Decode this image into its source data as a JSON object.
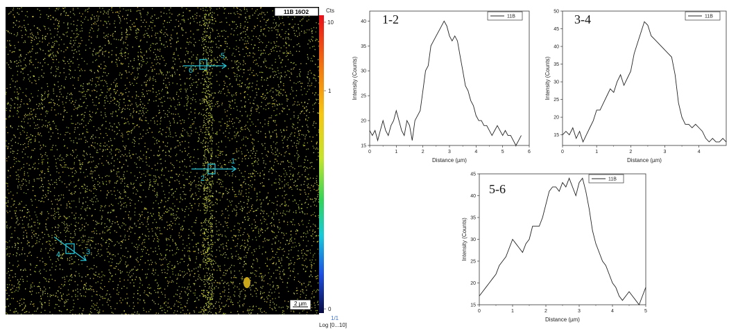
{
  "map": {
    "title": "11B 16O2",
    "scale_bar_label": "2 µm",
    "colorbar_unit": "Cts",
    "colorbar_ticks": [
      "10",
      "1",
      "0"
    ],
    "frame_label": "1/1",
    "scale_label": "Log [0...10]",
    "markers": [
      {
        "id": "m1",
        "text": "1"
      },
      {
        "id": "m2",
        "text": "2"
      },
      {
        "id": "m3",
        "text": "3"
      },
      {
        "id": "m4",
        "text": "4"
      },
      {
        "id": "m5",
        "text": "5"
      },
      {
        "id": "m6",
        "text": "6"
      }
    ],
    "colors": {
      "dot": "#d8e64a",
      "annotation": "#29c6d6"
    }
  },
  "chart_data": [
    {
      "type": "line",
      "title": "1-2",
      "xlabel": "Distance (µm)",
      "ylabel": "Intensity (Counts)",
      "xlim": [
        0,
        6
      ],
      "ylim": [
        15,
        42
      ],
      "xticks": [
        0,
        1,
        2,
        3,
        4,
        5,
        6
      ],
      "yticks": [
        15,
        20,
        25,
        30,
        35,
        40
      ],
      "series": [
        {
          "name": "11B",
          "x": [
            0,
            0.1,
            0.2,
            0.3,
            0.4,
            0.5,
            0.6,
            0.7,
            0.8,
            0.9,
            1.0,
            1.1,
            1.2,
            1.3,
            1.4,
            1.5,
            1.6,
            1.7,
            1.8,
            1.9,
            2.0,
            2.1,
            2.2,
            2.3,
            2.4,
            2.5,
            2.6,
            2.7,
            2.8,
            2.9,
            3.0,
            3.1,
            3.2,
            3.3,
            3.4,
            3.5,
            3.6,
            3.7,
            3.8,
            3.9,
            4.0,
            4.1,
            4.2,
            4.3,
            4.4,
            4.5,
            4.6,
            4.7,
            4.8,
            4.9,
            5.0,
            5.1,
            5.2,
            5.3,
            5.4,
            5.5,
            5.6,
            5.7
          ],
          "y": [
            18,
            17,
            18,
            16,
            18,
            20,
            18,
            17,
            19,
            20,
            22,
            20,
            18,
            17,
            20,
            19,
            16,
            20,
            21,
            22,
            26,
            30,
            31,
            35,
            36,
            37,
            38,
            39,
            40,
            39,
            37,
            36,
            37,
            36,
            33,
            30,
            27,
            26,
            24,
            23,
            21,
            20,
            20,
            19,
            19,
            18,
            17,
            18,
            19,
            18,
            17,
            18,
            17,
            17,
            16,
            15,
            16,
            17
          ]
        }
      ]
    },
    {
      "type": "line",
      "title": "3-4",
      "xlabel": "Distance (µm)",
      "ylabel": "Intensity (Counts)",
      "xlim": [
        0,
        4.8
      ],
      "ylim": [
        12,
        50
      ],
      "xticks": [
        0,
        1,
        2,
        3,
        4
      ],
      "yticks": [
        15,
        20,
        25,
        30,
        35,
        40,
        45,
        50
      ],
      "series": [
        {
          "name": "11B",
          "x": [
            0,
            0.1,
            0.2,
            0.3,
            0.4,
            0.5,
            0.6,
            0.7,
            0.8,
            0.9,
            1.0,
            1.1,
            1.2,
            1.3,
            1.4,
            1.5,
            1.6,
            1.7,
            1.8,
            1.9,
            2.0,
            2.1,
            2.2,
            2.3,
            2.4,
            2.5,
            2.6,
            2.7,
            2.8,
            2.9,
            3.0,
            3.1,
            3.2,
            3.3,
            3.4,
            3.5,
            3.6,
            3.7,
            3.8,
            3.9,
            4.0,
            4.1,
            4.2,
            4.3,
            4.4,
            4.5,
            4.6,
            4.7,
            4.8
          ],
          "y": [
            15,
            16,
            15,
            17,
            14,
            16,
            13,
            15,
            17,
            19,
            22,
            22,
            24,
            26,
            28,
            27,
            30,
            32,
            29,
            31,
            33,
            38,
            41,
            44,
            47,
            46,
            43,
            42,
            41,
            40,
            39,
            38,
            37,
            32,
            24,
            20,
            18,
            18,
            17,
            18,
            17,
            16,
            14,
            13,
            14,
            13,
            13,
            14,
            13
          ]
        }
      ]
    },
    {
      "type": "line",
      "title": "5-6",
      "xlabel": "Distance (µm)",
      "ylabel": "Intensity (Counts)",
      "xlim": [
        0,
        5
      ],
      "ylim": [
        15,
        45
      ],
      "xticks": [
        0,
        1,
        2,
        3,
        4,
        5
      ],
      "yticks": [
        15,
        20,
        25,
        30,
        35,
        40,
        45
      ],
      "series": [
        {
          "name": "11B",
          "x": [
            0,
            0.1,
            0.2,
            0.3,
            0.4,
            0.5,
            0.6,
            0.7,
            0.8,
            0.9,
            1.0,
            1.1,
            1.2,
            1.3,
            1.4,
            1.5,
            1.6,
            1.7,
            1.8,
            1.9,
            2.0,
            2.1,
            2.2,
            2.3,
            2.4,
            2.5,
            2.6,
            2.7,
            2.8,
            2.9,
            3.0,
            3.1,
            3.2,
            3.3,
            3.4,
            3.5,
            3.6,
            3.7,
            3.8,
            3.9,
            4.0,
            4.1,
            4.2,
            4.3,
            4.4,
            4.5,
            4.6,
            4.7,
            4.8,
            4.9,
            5.0
          ],
          "y": [
            17,
            18,
            19,
            20,
            21,
            22,
            24,
            25,
            26,
            28,
            30,
            29,
            28,
            27,
            29,
            30,
            33,
            33,
            33,
            35,
            38,
            41,
            42,
            42,
            41,
            43,
            42,
            44,
            42,
            40,
            43,
            44,
            41,
            37,
            32,
            29,
            27,
            25,
            24,
            22,
            20,
            19,
            17,
            16,
            17,
            18,
            17,
            16,
            15,
            17,
            19
          ]
        }
      ]
    }
  ]
}
